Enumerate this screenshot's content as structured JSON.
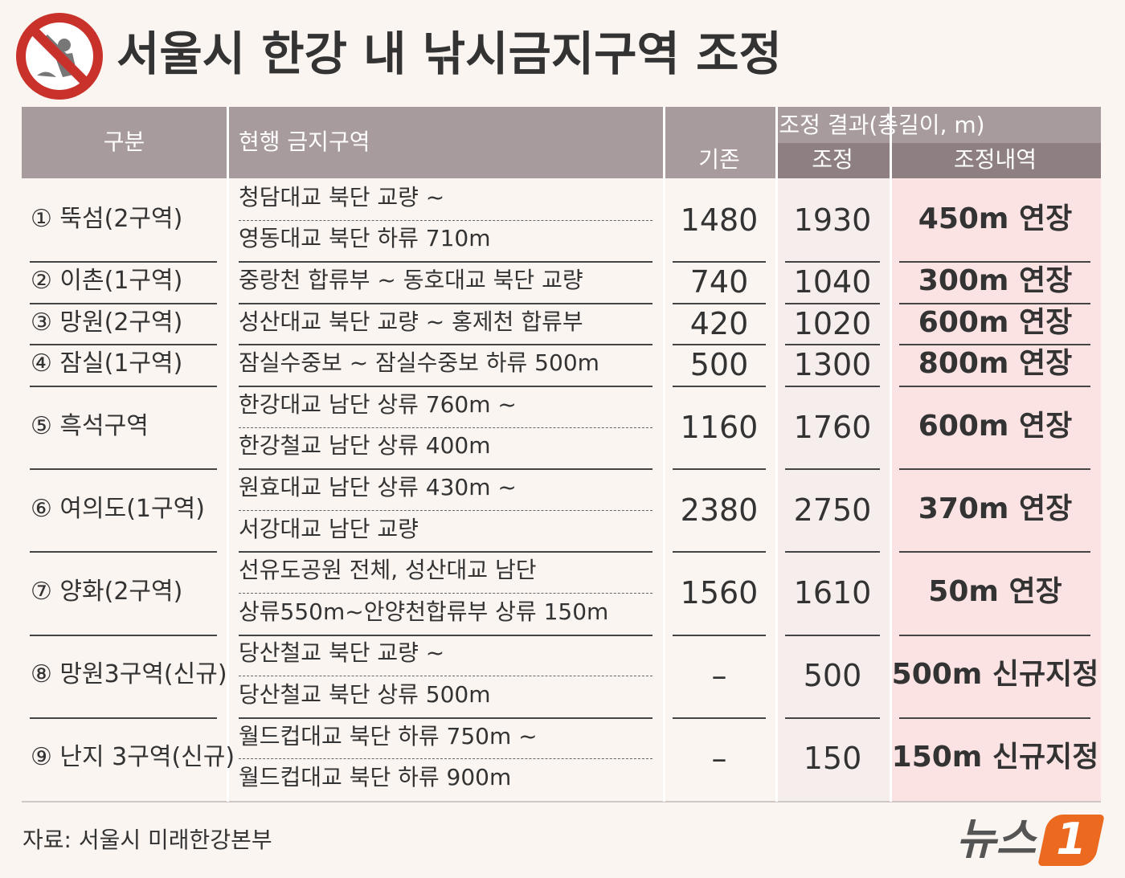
{
  "header": {
    "title": "서울시 한강 내 낚시금지구역 조정"
  },
  "table": {
    "columns": {
      "category": "구분",
      "zone": "현행 금지구역",
      "result": "조정 결과(총길이, m)",
      "before": "기존",
      "after": "조정",
      "detail": "조정내역"
    },
    "rows": [
      {
        "label": "① 뚝섬(2구역)",
        "zone": [
          "청담대교 북단 교량 ~",
          "영동대교 북단 하류 710m"
        ],
        "before": 1480,
        "after": 1930,
        "detail": "450m 연장"
      },
      {
        "label": "② 이촌(1구역)",
        "zone": [
          "중랑천 합류부 ~ 동호대교 북단 교량"
        ],
        "before": 740,
        "after": 1040,
        "detail": "300m 연장"
      },
      {
        "label": "③ 망원(2구역)",
        "zone": [
          "성산대교 북단 교량 ~ 홍제천 합류부"
        ],
        "before": 420,
        "after": 1020,
        "detail": "600m 연장"
      },
      {
        "label": "④ 잠실(1구역)",
        "zone": [
          "잠실수중보 ~ 잠실수중보 하류 500m"
        ],
        "before": 500,
        "after": 1300,
        "detail": "800m 연장"
      },
      {
        "label": "⑤ 흑석구역",
        "zone": [
          "한강대교 남단 상류 760m ~",
          "한강철교 남단 상류 400m"
        ],
        "before": 1160,
        "after": 1760,
        "detail": "600m 연장"
      },
      {
        "label": "⑥ 여의도(1구역)",
        "zone": [
          "원효대교 남단 상류 430m ~",
          "서강대교 남단 교량"
        ],
        "before": 2380,
        "after": 2750,
        "detail": "370m 연장"
      },
      {
        "label": "⑦ 양화(2구역)",
        "zone": [
          "선유도공원 전체, 성산대교 남단",
          "상류550m~안양천합류부 상류 150m"
        ],
        "before": 1560,
        "after": 1610,
        "detail": "50m 연장"
      },
      {
        "label": "⑧ 망원3구역(신규)",
        "zone": [
          "당산철교 북단 교량 ~",
          "당산철교 북단 상류 500m"
        ],
        "before": "–",
        "after": 500,
        "detail": "500m 신규지정"
      },
      {
        "label": "⑨ 난지 3구역(신규)",
        "zone": [
          "월드컵대교 북단 하류 750m ~",
          "월드컵대교 북단 하류 900m"
        ],
        "before": "–",
        "after": 150,
        "detail": "150m 신규지정"
      }
    ]
  },
  "footer": {
    "source": "자료: 서울시 미래한강본부",
    "logo_text": "뉴스",
    "logo_number": "1"
  }
}
